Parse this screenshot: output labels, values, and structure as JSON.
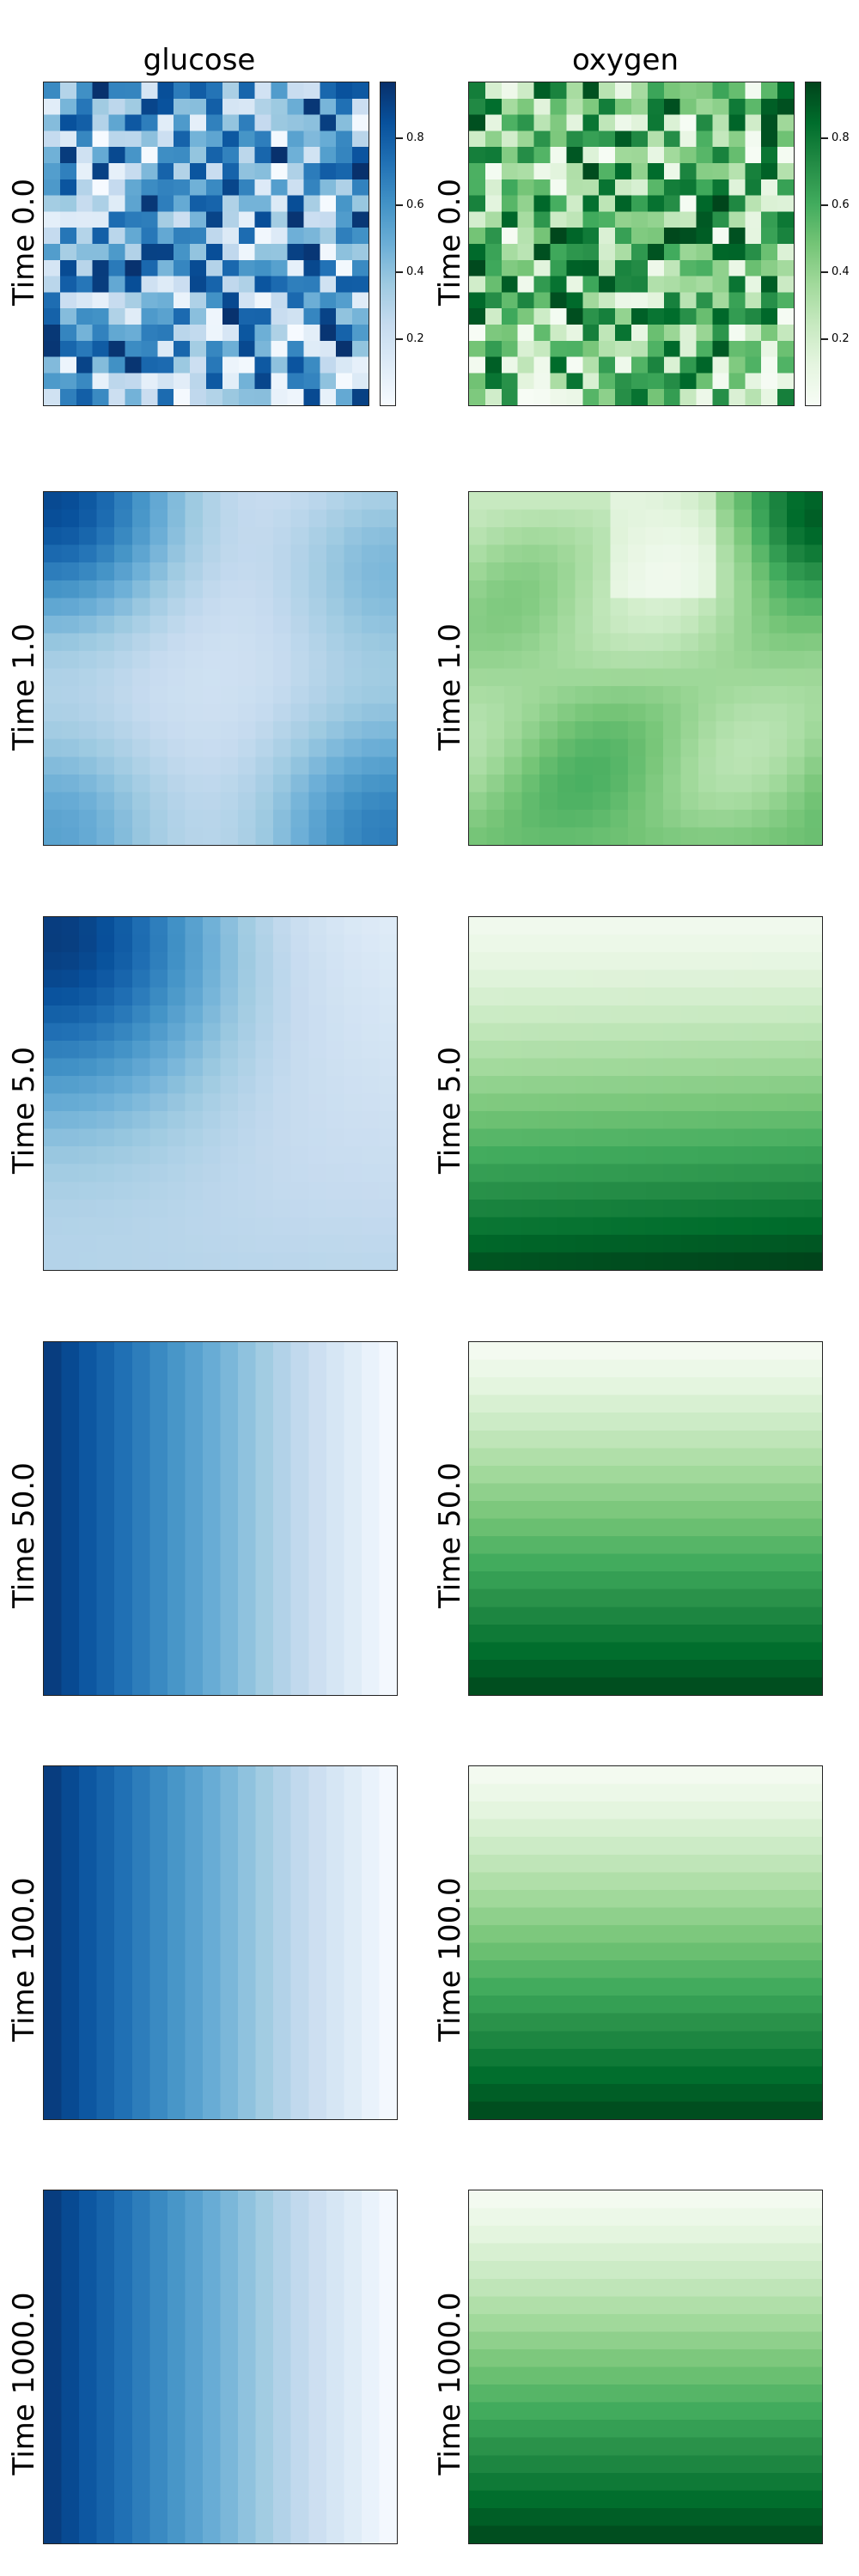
{
  "chart_data": {
    "type": "heatmap",
    "columns": [
      {
        "title": "glucose",
        "colormap": "Blues",
        "colors": [
          "#f7fbff",
          "#08306b"
        ]
      },
      {
        "title": "oxygen",
        "colormap": "Greens",
        "colors": [
          "#f7fcf5",
          "#00441b"
        ]
      }
    ],
    "rows": [
      {
        "label": "Time 0.0",
        "pattern": "random"
      },
      {
        "label": "Time 1.0",
        "pattern": "smoothed"
      },
      {
        "label": "Time 5.0",
        "pattern": "diffusing"
      },
      {
        "label": "Time 50.0",
        "pattern": "gradient"
      },
      {
        "label": "Time 100.0",
        "pattern": "gradient"
      },
      {
        "label": "Time 1000.0",
        "pattern": "gradient"
      }
    ],
    "grid_size": [
      20,
      20
    ],
    "colorbar": {
      "row": "Time 0.0",
      "ticks": [
        "0.2",
        "0.4",
        "0.6",
        "0.8"
      ],
      "range": [
        0.0,
        0.97
      ]
    }
  }
}
